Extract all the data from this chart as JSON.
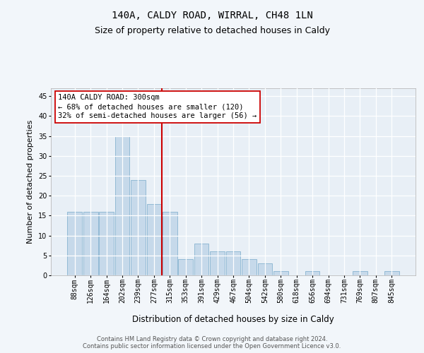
{
  "title": "140A, CALDY ROAD, WIRRAL, CH48 1LN",
  "subtitle": "Size of property relative to detached houses in Caldy",
  "xlabel": "Distribution of detached houses by size in Caldy",
  "ylabel": "Number of detached properties",
  "footer_line1": "Contains HM Land Registry data © Crown copyright and database right 2024.",
  "footer_line2": "Contains public sector information licensed under the Open Government Licence v3.0.",
  "categories": [
    "88sqm",
    "126sqm",
    "164sqm",
    "202sqm",
    "239sqm",
    "277sqm",
    "315sqm",
    "353sqm",
    "391sqm",
    "429sqm",
    "467sqm",
    "504sqm",
    "542sqm",
    "580sqm",
    "618sqm",
    "656sqm",
    "694sqm",
    "731sqm",
    "769sqm",
    "807sqm",
    "845sqm"
  ],
  "bar_values": [
    16,
    16,
    16,
    35,
    24,
    18,
    16,
    4,
    8,
    6,
    6,
    4,
    3,
    1,
    0,
    1,
    0,
    0,
    1,
    0,
    1
  ],
  "bar_color": "#c6d9ea",
  "bar_edge_color": "#88b4d0",
  "property_line_bin": 6,
  "property_line_color": "#cc0000",
  "annotation_line1": "140A CALDY ROAD: 300sqm",
  "annotation_line2": "← 68% of detached houses are smaller (120)",
  "annotation_line3": "32% of semi-detached houses are larger (56) →",
  "annotation_box_edgecolor": "#cc0000",
  "ylim": [
    0,
    47
  ],
  "yticks": [
    0,
    5,
    10,
    15,
    20,
    25,
    30,
    35,
    40,
    45
  ],
  "plot_bg": "#e8eff6",
  "fig_bg": "#f2f6fa",
  "grid_color": "#ffffff",
  "title_fontsize": 10,
  "subtitle_fontsize": 9,
  "ylabel_fontsize": 8,
  "xlabel_fontsize": 8.5,
  "tick_fontsize": 7,
  "ann_fontsize": 7.5,
  "footer_fontsize": 6
}
